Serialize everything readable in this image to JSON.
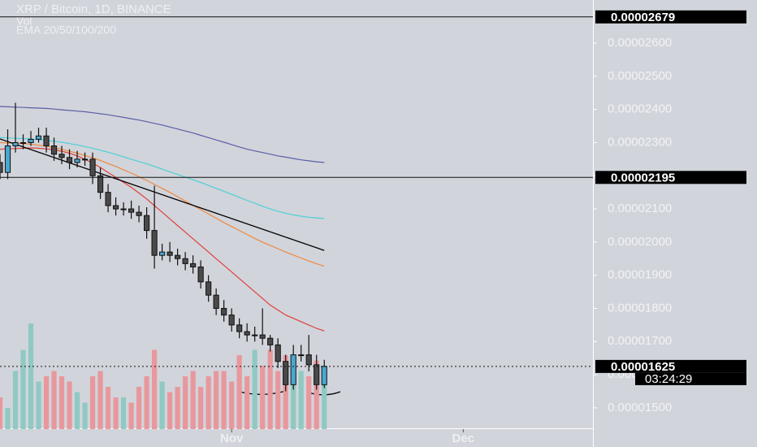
{
  "chart_data": {
    "type": "candlestick",
    "title": "XRP / Bitcoin, 1D, BINANCE",
    "subtitle": "Vol",
    "indicator_label": "EMA 20/50/100/200",
    "x": [
      1,
      2,
      3,
      4,
      5,
      6,
      7,
      8,
      9,
      10,
      11,
      12,
      13,
      14,
      15,
      16,
      17,
      18,
      19,
      20,
      21,
      22,
      23,
      24,
      25,
      26,
      27,
      28,
      29,
      30,
      31,
      32,
      33,
      34,
      35,
      36,
      37,
      38,
      39,
      40,
      41,
      42,
      43
    ],
    "open": [
      2.24e-05,
      2.21e-05,
      2.29e-05,
      2.3e-05,
      2.3e-05,
      2.31e-05,
      2.32e-05,
      2.29e-05,
      2.265e-05,
      2.255e-05,
      2.24e-05,
      2.25e-05,
      2.25e-05,
      2.2e-05,
      2.15e-05,
      2.11e-05,
      2.1e-05,
      2.1e-05,
      2.09e-05,
      2.08e-05,
      2.035e-05,
      1.96e-05,
      1.97e-05,
      1.96e-05,
      1.95e-05,
      1.935e-05,
      1.925e-05,
      1.88e-05,
      1.84e-05,
      1.8e-05,
      1.78e-05,
      1.75e-05,
      1.73e-05,
      1.72e-05,
      1.72e-05,
      1.71e-05,
      1.69e-05,
      1.64e-05,
      1.57e-05,
      1.66e-05,
      1.66e-05,
      1.63e-05,
      1.57e-05
    ],
    "high": [
      2.265e-05,
      2.34e-05,
      2.42e-05,
      2.325e-05,
      2.335e-05,
      2.345e-05,
      2.345e-05,
      2.315e-05,
      2.29e-05,
      2.28e-05,
      2.275e-05,
      2.27e-05,
      2.27e-05,
      2.225e-05,
      2.175e-05,
      2.135e-05,
      2.12e-05,
      2.125e-05,
      2.11e-05,
      2.105e-05,
      2.17e-05,
      1.995e-05,
      2e-05,
      1.98e-05,
      1.97e-05,
      1.96e-05,
      1.945e-05,
      1.9e-05,
      1.86e-05,
      1.825e-05,
      1.8e-05,
      1.77e-05,
      1.755e-05,
      1.745e-05,
      1.8e-05,
      1.72e-05,
      1.71e-05,
      1.66e-05,
      1.69e-05,
      1.69e-05,
      1.72e-05,
      1.66e-05,
      1.645e-05
    ],
    "low": [
      2.19e-05,
      2.19e-05,
      2.27e-05,
      2.28e-05,
      2.29e-05,
      2.3e-05,
      2.27e-05,
      2.245e-05,
      2.235e-05,
      2.22e-05,
      2.225e-05,
      2.23e-05,
      2.175e-05,
      2.13e-05,
      2.09e-05,
      2.08e-05,
      2.08e-05,
      2.07e-05,
      2.06e-05,
      2.01e-05,
      1.92e-05,
      1.945e-05,
      1.94e-05,
      1.93e-05,
      1.915e-05,
      1.905e-05,
      1.86e-05,
      1.82e-05,
      1.78e-05,
      1.76e-05,
      1.73e-05,
      1.71e-05,
      1.7e-05,
      1.7e-05,
      1.69e-05,
      1.67e-05,
      1.62e-05,
      1.55e-05,
      1.555e-05,
      1.64e-05,
      1.61e-05,
      1.555e-05,
      1.56e-05
    ],
    "close": [
      2.21e-05,
      2.29e-05,
      2.3e-05,
      2.3e-05,
      2.31e-05,
      2.32e-05,
      2.29e-05,
      2.265e-05,
      2.255e-05,
      2.24e-05,
      2.25e-05,
      2.25e-05,
      2.2e-05,
      2.15e-05,
      2.11e-05,
      2.1e-05,
      2.1e-05,
      2.09e-05,
      2.08e-05,
      2.035e-05,
      1.96e-05,
      1.97e-05,
      1.96e-05,
      1.95e-05,
      1.935e-05,
      1.925e-05,
      1.88e-05,
      1.84e-05,
      1.8e-05,
      1.78e-05,
      1.75e-05,
      1.73e-05,
      1.72e-05,
      1.72e-05,
      1.71e-05,
      1.69e-05,
      1.64e-05,
      1.57e-05,
      1.66e-05,
      1.66e-05,
      1.63e-05,
      1.57e-05,
      1.625e-05
    ],
    "up_color": "#4aa8cf",
    "down_color": "#4a4a4a",
    "volume": [
      30,
      20,
      55,
      75,
      100,
      45,
      50,
      55,
      50,
      45,
      35,
      25,
      50,
      55,
      40,
      30,
      30,
      25,
      40,
      50,
      75,
      45,
      35,
      40,
      50,
      55,
      40,
      50,
      55,
      55,
      45,
      70,
      50,
      75,
      60,
      75,
      55,
      70,
      65,
      55,
      50,
      65,
      60
    ],
    "vlim": [
      0,
      100
    ],
    "volume_up_color": "#8fc9c2",
    "volume_down_color": "#e8989c",
    "series": [
      {
        "color": "#5b5ea6",
        "values": [
          2.409e-05,
          2.408e-05,
          2.407e-05,
          2.406e-05,
          2.405e-05,
          2.404e-05,
          2.403e-05,
          2.401e-05,
          2.399e-05,
          2.397e-05,
          2.395e-05,
          2.393e-05,
          2.39e-05,
          2.387e-05,
          2.384e-05,
          2.38e-05,
          2.376e-05,
          2.372e-05,
          2.368e-05,
          2.363e-05,
          2.358e-05,
          2.353e-05,
          2.347e-05,
          2.341e-05,
          2.335e-05,
          2.329e-05,
          2.322e-05,
          2.315e-05,
          2.308e-05,
          2.301e-05,
          2.294e-05,
          2.287e-05,
          2.28e-05,
          2.275e-05,
          2.27e-05,
          2.265e-05,
          2.26e-05,
          2.256e-05,
          2.252e-05,
          2.248e-05,
          2.245e-05,
          2.242e-05,
          2.24e-05
        ]
      },
      {
        "color": "#4dd0d6",
        "values": [
          2.315e-05,
          2.314e-05,
          2.313e-05,
          2.312e-05,
          2.311e-05,
          2.309e-05,
          2.307e-05,
          2.304e-05,
          2.301e-05,
          2.297e-05,
          2.293e-05,
          2.288e-05,
          2.283e-05,
          2.277e-05,
          2.271e-05,
          2.264e-05,
          2.257e-05,
          2.25e-05,
          2.243e-05,
          2.236e-05,
          2.228e-05,
          2.22e-05,
          2.212e-05,
          2.204e-05,
          2.196e-05,
          2.188e-05,
          2.18e-05,
          2.171e-05,
          2.162e-05,
          2.153e-05,
          2.144e-05,
          2.135e-05,
          2.126e-05,
          2.117e-05,
          2.108e-05,
          2.1e-05,
          2.093e-05,
          2.087e-05,
          2.082e-05,
          2.078e-05,
          2.075e-05,
          2.073e-05,
          2.071e-05
        ]
      },
      {
        "color": "#f0883e",
        "values": [
          2.3e-05,
          2.299e-05,
          2.298e-05,
          2.297e-05,
          2.295e-05,
          2.292e-05,
          2.289e-05,
          2.285e-05,
          2.28e-05,
          2.274e-05,
          2.268e-05,
          2.261e-05,
          2.254e-05,
          2.246e-05,
          2.237e-05,
          2.228e-05,
          2.218e-05,
          2.208e-05,
          2.197e-05,
          2.186e-05,
          2.174e-05,
          2.162e-05,
          2.15e-05,
          2.137e-05,
          2.124e-05,
          2.111e-05,
          2.098e-05,
          2.085e-05,
          2.072e-05,
          2.059e-05,
          2.047e-05,
          2.035e-05,
          2.023e-05,
          2.011e-05,
          2e-05,
          1.99e-05,
          1.98e-05,
          1.97e-05,
          1.961e-05,
          1.952e-05,
          1.943e-05,
          1.935e-05,
          1.927e-05
        ]
      },
      {
        "color": "#e0403a",
        "values": [
          2.28e-05,
          2.281e-05,
          2.282e-05,
          2.283e-05,
          2.284e-05,
          2.283e-05,
          2.281e-05,
          2.278e-05,
          2.274e-05,
          2.268e-05,
          2.26e-05,
          2.25e-05,
          2.238e-05,
          2.225e-05,
          2.21e-05,
          2.195e-05,
          2.18e-05,
          2.165e-05,
          2.148e-05,
          2.13e-05,
          2.11e-05,
          2.09e-05,
          2.07e-05,
          2.05e-05,
          2.03e-05,
          2.01e-05,
          1.99e-05,
          1.97e-05,
          1.95e-05,
          1.93e-05,
          1.91e-05,
          1.89e-05,
          1.87e-05,
          1.85e-05,
          1.83e-05,
          1.81e-05,
          1.795e-05,
          1.78e-05,
          1.77e-05,
          1.76e-05,
          1.75e-05,
          1.74e-05,
          1.732e-05
        ]
      }
    ],
    "trend_lines": [
      {
        "x": [
          1,
          43
        ],
        "y": [
          2.311e-05,
          1.975e-05
        ],
        "color": "#000000"
      }
    ],
    "xlim": [
      1,
      77.8
    ],
    "xticks": [
      {
        "value": 31,
        "label": "Nov"
      },
      {
        "value": 61,
        "label": "Dec"
      }
    ],
    "ylim": [
      1.436e-05,
      2.73e-05
    ],
    "yticks": [
      {
        "value": 1.5e-05,
        "label": "0.00001500"
      },
      {
        "value": 1.6e-05,
        "label": "0.00001600"
      },
      {
        "value": 1.7e-05,
        "label": "0.00001700"
      },
      {
        "value": 1.8e-05,
        "label": "0.00001800"
      },
      {
        "value": 1.9e-05,
        "label": "0.00001900"
      },
      {
        "value": 2e-05,
        "label": "0.00002000"
      },
      {
        "value": 2.1e-05,
        "label": "0.00002100"
      },
      {
        "value": 2.2e-05,
        "label": "0.00002200"
      },
      {
        "value": 2.3e-05,
        "label": "0.00002300"
      },
      {
        "value": 2.4e-05,
        "label": "0.00002400"
      },
      {
        "value": 2.5e-05,
        "label": "0.00002500"
      },
      {
        "value": 2.6e-05,
        "label": "0.00002600"
      }
    ],
    "price_lines": [
      {
        "value": 2.679e-05,
        "label": "0.00002679",
        "style": "solid"
      },
      {
        "value": 2.195e-05,
        "label": "0.00002195",
        "style": "solid"
      },
      {
        "value": 1.625e-05,
        "label": "0.00001625",
        "style": "dotted"
      }
    ],
    "countdown": "03:24:29"
  }
}
